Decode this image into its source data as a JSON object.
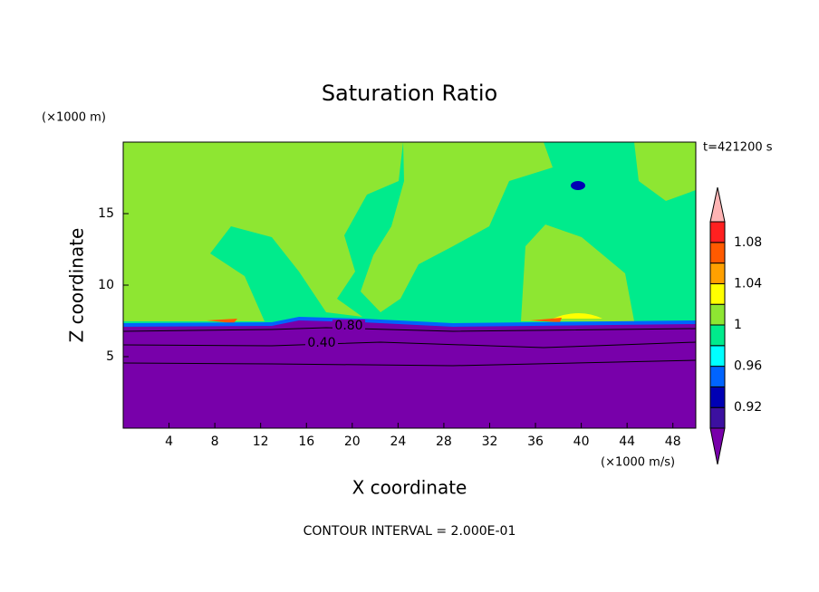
{
  "chart_data": {
    "type": "contour",
    "title": "Saturation Ratio",
    "y_unit": "(×1000 m)",
    "x_unit": "(×1000 m/s)",
    "time_label": "t=421200 s",
    "xlabel": "X coordinate",
    "ylabel": "Z coordinate",
    "footer": "CONTOUR INTERVAL = 2.000E-01",
    "xlim": [
      0,
      50
    ],
    "ylim": [
      0,
      20
    ],
    "xticks": [
      4,
      8,
      12,
      16,
      20,
      24,
      28,
      32,
      36,
      40,
      44,
      48
    ],
    "yticks": [
      5,
      10,
      15
    ],
    "contour_labels": [
      {
        "value": 0.8,
        "label": "0.80"
      },
      {
        "value": 0.4,
        "label": "0.40"
      }
    ],
    "colorbar": {
      "levels": [
        0.9,
        0.92,
        0.94,
        0.96,
        0.98,
        1,
        1.02,
        1.04,
        1.06,
        1.08,
        1.1
      ],
      "ticks": [
        0.92,
        0.96,
        1,
        1.04,
        1.08
      ],
      "colors": [
        "#7800aa",
        "#3c10a0",
        "#0000b4",
        "#0064ff",
        "#00ffff",
        "#00eb8c",
        "#8ee632",
        "#ffff00",
        "#ffa000",
        "#ff5a00",
        "#ff2020",
        "#ffb4b4"
      ]
    }
  }
}
